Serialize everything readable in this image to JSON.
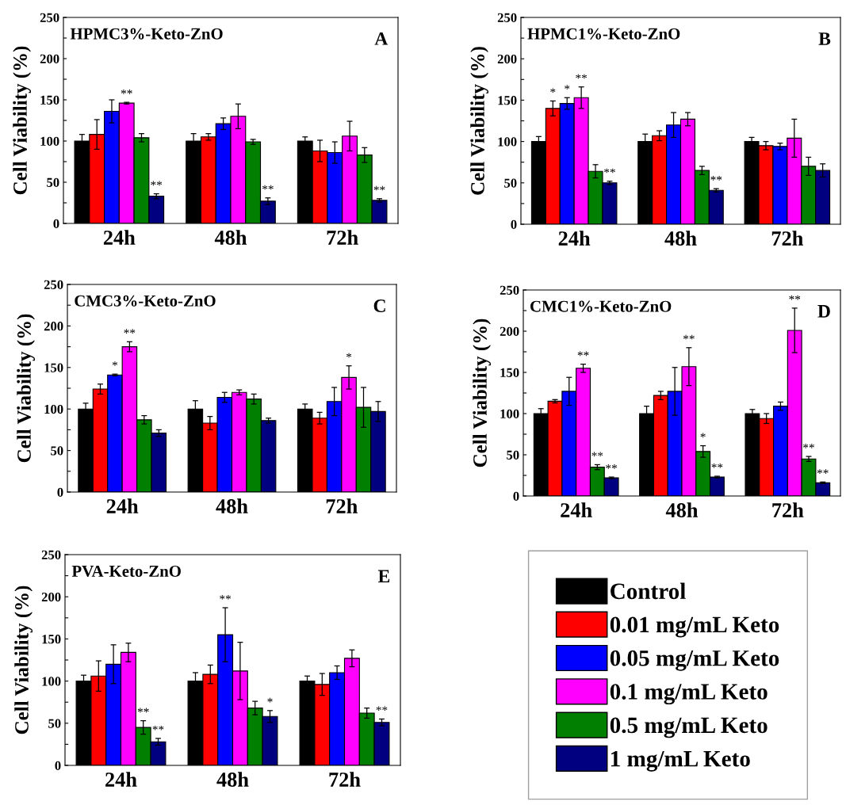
{
  "chart_data": [
    {
      "type": "bar",
      "title": "HPMC3%-Keto-ZnO",
      "ylabel": "Cell Viability (%)",
      "annotations": [
        "A"
      ],
      "categories": [
        "24h",
        "48h",
        "72h"
      ],
      "ylim": [
        0,
        250
      ],
      "yticks": [
        0,
        {
          "value": 25,
          "label": null
        },
        50,
        {
          "value": 75,
          "label": null
        },
        100,
        {
          "value": 125,
          "label": null
        },
        150,
        {
          "value": 175,
          "label": null
        },
        200,
        {
          "value": 225,
          "label": null
        },
        250
      ],
      "series": [
        {
          "color": "#000000",
          "values": [
            100,
            100,
            100
          ],
          "errors": [
            8,
            9,
            5
          ]
        },
        {
          "color": "#ff0000",
          "values": [
            108,
            105,
            88
          ],
          "errors": [
            18,
            4,
            13
          ]
        },
        {
          "color": "#0000ff",
          "values": [
            136,
            121,
            86
          ],
          "errors": [
            14,
            7,
            13
          ]
        },
        {
          "color": "#ff00ff",
          "values": [
            146,
            130,
            106
          ],
          "errors": [
            1,
            15,
            18
          ],
          "value_labels": [
            "**",
            null,
            null
          ]
        },
        {
          "color": "#007f00",
          "values": [
            104,
            99,
            83
          ],
          "errors": [
            5,
            3,
            9
          ]
        },
        {
          "color": "#000080",
          "values": [
            33,
            27,
            28
          ],
          "errors": [
            3,
            4,
            2
          ],
          "value_labels": [
            "**",
            "**",
            "**"
          ]
        }
      ]
    },
    {
      "type": "bar",
      "title": "HPMC1%-Keto-ZnO",
      "ylabel": "Cell Viability (%)",
      "annotations": [
        "B"
      ],
      "categories": [
        "24h",
        "48h",
        "72h"
      ],
      "ylim": [
        0,
        250
      ],
      "yticks": [
        0,
        {
          "value": 25,
          "label": null
        },
        50,
        {
          "value": 75,
          "label": null
        },
        100,
        {
          "value": 125,
          "label": null
        },
        150,
        {
          "value": 175,
          "label": null
        },
        200,
        {
          "value": 225,
          "label": null
        },
        250
      ],
      "series": [
        {
          "color": "#000000",
          "values": [
            100,
            100,
            100
          ],
          "errors": [
            6,
            9,
            5
          ]
        },
        {
          "color": "#ff0000",
          "values": [
            140,
            107,
            95
          ],
          "errors": [
            9,
            6,
            5
          ],
          "value_labels": [
            "*",
            null,
            null
          ]
        },
        {
          "color": "#0000ff",
          "values": [
            146,
            120,
            94
          ],
          "errors": [
            7,
            15,
            4
          ],
          "value_labels": [
            "*",
            null,
            null
          ]
        },
        {
          "color": "#ff00ff",
          "values": [
            153,
            127,
            104
          ],
          "errors": [
            13,
            8,
            23
          ],
          "value_labels": [
            "**",
            null,
            null
          ]
        },
        {
          "color": "#007f00",
          "values": [
            64,
            65,
            70
          ],
          "errors": [
            8,
            5,
            11
          ]
        },
        {
          "color": "#000080",
          "values": [
            50,
            41,
            65
          ],
          "errors": [
            2,
            2,
            8
          ],
          "value_labels": [
            "**",
            "**",
            null
          ]
        }
      ]
    },
    {
      "type": "bar",
      "title": "CMC3%-Keto-ZnO",
      "ylabel": "Cell Viability (%)",
      "annotations": [
        "C"
      ],
      "categories": [
        "24h",
        "48h",
        "72h"
      ],
      "ylim": [
        0,
        250
      ],
      "yticks": [
        0,
        {
          "value": 25,
          "label": null
        },
        50,
        {
          "value": 75,
          "label": null
        },
        100,
        {
          "value": 125,
          "label": null
        },
        150,
        {
          "value": 175,
          "label": null
        },
        200,
        {
          "value": 225,
          "label": null
        },
        250
      ],
      "series": [
        {
          "color": "#000000",
          "values": [
            100,
            100,
            100
          ],
          "errors": [
            7,
            10,
            6
          ]
        },
        {
          "color": "#ff0000",
          "values": [
            124,
            83,
            89
          ],
          "errors": [
            6,
            8,
            7
          ]
        },
        {
          "color": "#0000ff",
          "values": [
            141,
            114,
            109
          ],
          "errors": [
            1,
            6,
            17
          ],
          "value_labels": [
            "*",
            null,
            null
          ]
        },
        {
          "color": "#ff00ff",
          "values": [
            175,
            120,
            138
          ],
          "errors": [
            6,
            3,
            14
          ],
          "value_labels": [
            "**",
            null,
            "*"
          ]
        },
        {
          "color": "#007f00",
          "values": [
            87,
            112,
            102
          ],
          "errors": [
            5,
            6,
            24
          ]
        },
        {
          "color": "#000080",
          "values": [
            71,
            86,
            97
          ],
          "errors": [
            4,
            3,
            12
          ]
        }
      ]
    },
    {
      "type": "bar",
      "title": "CMC1%-Keto-ZnO",
      "ylabel": "Cell Viability (%)",
      "annotations": [
        "D"
      ],
      "categories": [
        "24h",
        "48h",
        "72h"
      ],
      "ylim": [
        0,
        250
      ],
      "yticks": [
        0,
        {
          "value": 25,
          "label": null
        },
        50,
        {
          "value": 75,
          "label": null
        },
        100,
        {
          "value": 125,
          "label": null
        },
        150,
        {
          "value": 175,
          "label": null
        },
        200,
        {
          "value": 225,
          "label": null
        },
        250
      ],
      "legend": "bottom",
      "series": [
        {
          "name": "Control",
          "color": "#000000",
          "values": [
            100,
            100,
            100
          ],
          "errors": [
            6,
            9,
            5
          ]
        },
        {
          "name": "0.01 mg/mL Keto",
          "color": "#ff0000",
          "values": [
            115,
            122,
            94
          ],
          "errors": [
            2,
            5,
            6
          ]
        },
        {
          "name": "0.05 mg/mL Keto",
          "color": "#0000ff",
          "values": [
            127,
            127,
            109
          ],
          "errors": [
            17,
            29,
            5
          ]
        },
        {
          "name": "0.1 mg/mL Keto",
          "color": "#ff00ff",
          "values": [
            155,
            157,
            201
          ],
          "errors": [
            5,
            23,
            27
          ],
          "value_labels": [
            "**",
            "**",
            "**"
          ]
        },
        {
          "name": "0.5 mg/mL Keto",
          "color": "#007f00",
          "values": [
            35,
            54,
            45
          ],
          "errors": [
            3,
            7,
            3
          ],
          "value_labels": [
            "**",
            "*",
            "**"
          ]
        },
        {
          "name": "1 mg/mL Keto",
          "color": "#000080",
          "values": [
            22,
            23,
            16
          ],
          "errors": [
            1,
            1,
            1
          ],
          "value_labels": [
            "**",
            "**",
            "**"
          ]
        }
      ]
    },
    {
      "type": "bar",
      "title": "PVA-Keto-ZnO",
      "ylabel": "Cell Viability (%)",
      "annotations": [
        "E"
      ],
      "categories": [
        "24h",
        "48h",
        "72h"
      ],
      "ylim": [
        0,
        250
      ],
      "yticks": [
        0,
        {
          "value": 25,
          "label": null
        },
        50,
        {
          "value": 75,
          "label": null
        },
        100,
        {
          "value": 125,
          "label": null
        },
        150,
        {
          "value": 175,
          "label": null
        },
        200,
        {
          "value": 225,
          "label": null
        },
        250
      ],
      "series": [
        {
          "color": "#000000",
          "values": [
            100,
            100,
            100
          ],
          "errors": [
            7,
            10,
            6
          ]
        },
        {
          "color": "#ff0000",
          "values": [
            106,
            108,
            96
          ],
          "errors": [
            18,
            11,
            13
          ]
        },
        {
          "color": "#0000ff",
          "values": [
            120,
            155,
            110
          ],
          "errors": [
            23,
            32,
            8
          ],
          "value_labels": [
            null,
            "**",
            null
          ]
        },
        {
          "color": "#ff00ff",
          "values": [
            134,
            112,
            127
          ],
          "errors": [
            11,
            34,
            10
          ]
        },
        {
          "color": "#007f00",
          "values": [
            45,
            68,
            62
          ],
          "errors": [
            8,
            8,
            6
          ],
          "value_labels": [
            "**",
            null,
            null
          ]
        },
        {
          "color": "#000080",
          "values": [
            28,
            58,
            51
          ],
          "errors": [
            4,
            7,
            4
          ],
          "value_labels": [
            "**",
            "*",
            "**"
          ]
        }
      ]
    }
  ]
}
